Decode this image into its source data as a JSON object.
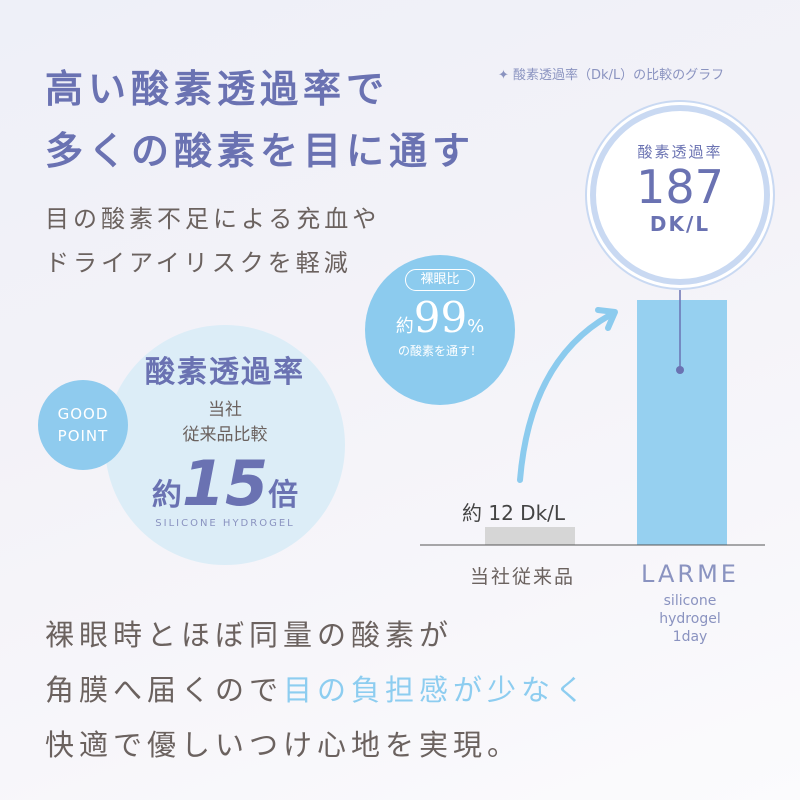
{
  "title": {
    "line1": "高い酸素透過率で",
    "line2": "多くの酸素を目に通す"
  },
  "subtitle": {
    "line1": "目の酸素不足による充血や",
    "line2": "ドライアイリスクを軽減"
  },
  "graph_note": "✦ 酸素透過率（Dk/L）の比較のグラフ",
  "good_point": {
    "line1": "GOOD",
    "line2": "POINT"
  },
  "badge": {
    "heading": "酸素透過率",
    "line1": "当社",
    "line2": "従来品比較",
    "prefix": "約",
    "value": "15",
    "suffix": "倍",
    "arc_text": "SILICONE HYDROGEL"
  },
  "percent_bubble": {
    "tag": "裸眼比",
    "prefix": "約",
    "value": "99",
    "unit": "%",
    "caption": "の酸素を通す！"
  },
  "highlight_circle": {
    "label": "酸素透過率",
    "value": "187",
    "unit": "DK/L"
  },
  "chart_data": {
    "type": "bar",
    "title": "酸素透過率（Dk/L）の比較のグラフ",
    "categories": [
      "当社従来品",
      "LARME"
    ],
    "category_sub": [
      "",
      "silicone hydrogel 1day"
    ],
    "values": [
      12,
      187
    ],
    "data_labels": [
      "約 12 Dk/L",
      "187 DK/L"
    ],
    "colors": [
      "#d6d6d6",
      "#96d0f0"
    ]
  },
  "body": {
    "line1": "裸眼時とほぼ同量の酸素が",
    "line2_a": "角膜へ届くので",
    "line2_b": "目の負担感が少なく",
    "line3": "快適で優しいつけ心地を実現。"
  },
  "colors": {
    "accent": "#6a72b2",
    "sky": "#8dcdf0",
    "text": "#6b625f"
  }
}
